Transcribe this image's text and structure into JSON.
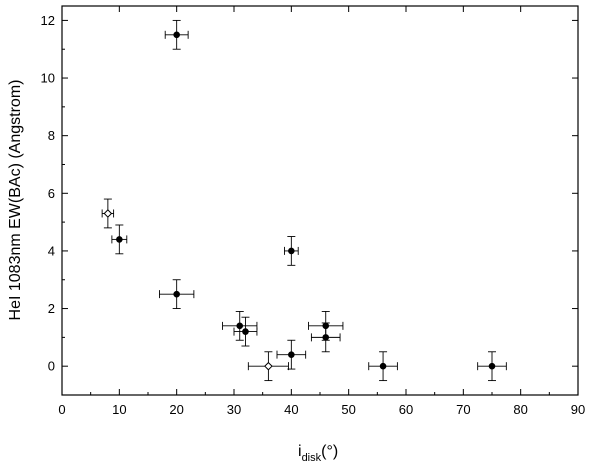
{
  "chart_data": {
    "type": "scatter",
    "xlabel": {
      "main": "i",
      "sub": "disk",
      "suffix": "(°)"
    },
    "ylabel": "HeI 1083nm EW(BAc)  (Angstrom)",
    "xlim": [
      0,
      90
    ],
    "ylim": [
      -1,
      12.5
    ],
    "xticks": [
      0,
      10,
      20,
      30,
      40,
      50,
      60,
      70,
      80,
      90
    ],
    "yticks": [
      0,
      2,
      4,
      6,
      8,
      10,
      12
    ],
    "grid": false,
    "points": [
      {
        "x": 20,
        "y": 11.5,
        "xerr": 2,
        "yerr": 0.5,
        "filled": true
      },
      {
        "x": 8,
        "y": 5.3,
        "xerr": 1,
        "yerr": 0.5,
        "filled": false
      },
      {
        "x": 10,
        "y": 4.4,
        "xerr": 1.3,
        "yerr": 0.5,
        "filled": true
      },
      {
        "x": 40,
        "y": 4.0,
        "xerr": 1.2,
        "yerr": 0.5,
        "filled": true
      },
      {
        "x": 20,
        "y": 2.5,
        "xerr": 3,
        "yerr": 0.5,
        "filled": true
      },
      {
        "x": 31,
        "y": 1.4,
        "xerr": 3,
        "yerr": 0.5,
        "filled": true
      },
      {
        "x": 32,
        "y": 1.2,
        "xerr": 2,
        "yerr": 0.5,
        "filled": true
      },
      {
        "x": 36,
        "y": 0,
        "xerr": 3.5,
        "yerr": 0.5,
        "filled": false
      },
      {
        "x": 40,
        "y": 0.4,
        "xerr": 2.5,
        "yerr": 0.5,
        "filled": true
      },
      {
        "x": 46,
        "y": 1.4,
        "xerr": 3,
        "yerr": 0.5,
        "filled": true
      },
      {
        "x": 46,
        "y": 1.0,
        "xerr": 2.5,
        "yerr": 0.5,
        "filled": true
      },
      {
        "x": 56,
        "y": 0,
        "xerr": 2.5,
        "yerr": 0.5,
        "filled": true
      },
      {
        "x": 75,
        "y": 0,
        "xerr": 2.5,
        "yerr": 0.5,
        "filled": true
      }
    ]
  }
}
